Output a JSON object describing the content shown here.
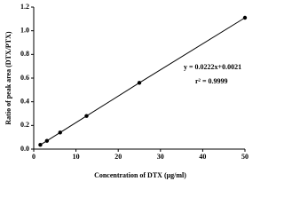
{
  "chart_data": {
    "type": "scatter",
    "x_label": "Concentration of DTX  (μg/ml)",
    "y_label": "Ratio of peak area  (DTX/PTX)",
    "annotations": [
      "y = 0.0222x+0.0021",
      "r² = 0.9999"
    ],
    "x": [
      1.5625,
      3.125,
      6.25,
      12.5,
      25,
      50
    ],
    "values": [
      0.036,
      0.07,
      0.14,
      0.28,
      0.56,
      1.11
    ],
    "color": "#000000",
    "connect": true,
    "xlim": [
      0,
      50
    ],
    "xticks": [
      0,
      10,
      20,
      30,
      40,
      50
    ],
    "ylim": [
      0,
      1.2
    ],
    "yticks": [
      {
        "value": 0,
        "label": "0.0"
      },
      0.2,
      0.4,
      0.6,
      0.8,
      {
        "value": 1,
        "label": "1.0"
      },
      1.2
    ]
  }
}
